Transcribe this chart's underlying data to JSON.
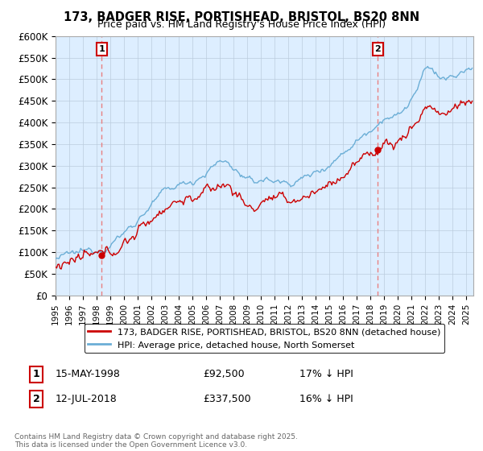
{
  "title": "173, BADGER RISE, PORTISHEAD, BRISTOL, BS20 8NN",
  "subtitle": "Price paid vs. HM Land Registry's House Price Index (HPI)",
  "ylabel_ticks": [
    "£0",
    "£50K",
    "£100K",
    "£150K",
    "£200K",
    "£250K",
    "£300K",
    "£350K",
    "£400K",
    "£450K",
    "£500K",
    "£550K",
    "£600K"
  ],
  "ylim": [
    0,
    600000
  ],
  "ytick_values": [
    0,
    50000,
    100000,
    150000,
    200000,
    250000,
    300000,
    350000,
    400000,
    450000,
    500000,
    550000,
    600000
  ],
  "xlim_start": 1995.0,
  "xlim_end": 2025.5,
  "sale1_year": 1998.37,
  "sale1_price": 92500,
  "sale1_label": "1",
  "sale1_date": "15-MAY-1998",
  "sale1_pct": "17% ↓ HPI",
  "sale2_year": 2018.53,
  "sale2_price": 337500,
  "sale2_label": "2",
  "sale2_date": "12-JUL-2018",
  "sale2_pct": "16% ↓ HPI",
  "hpi_color": "#6baed6",
  "price_color": "#cc0000",
  "vline_color": "#e88080",
  "plot_bg_color": "#ddeeff",
  "legend_entry1": "173, BADGER RISE, PORTISHEAD, BRISTOL, BS20 8NN (detached house)",
  "legend_entry2": "HPI: Average price, detached house, North Somerset",
  "footer": "Contains HM Land Registry data © Crown copyright and database right 2025.\nThis data is licensed under the Open Government Licence v3.0.",
  "background_color": "#ffffff",
  "grid_color": "#bbccdd"
}
